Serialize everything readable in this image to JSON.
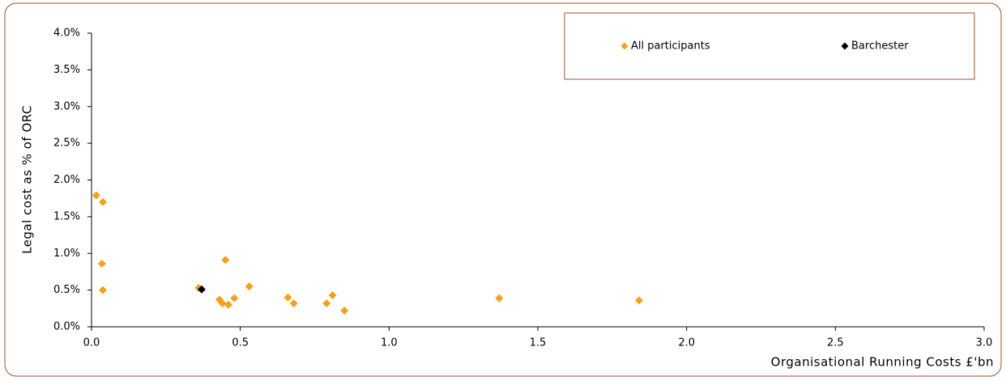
{
  "chart_data": {
    "type": "scatter",
    "x_label": "Organisational Running Costs £'bn",
    "y_label": "Legal cost as % of ORC",
    "xlim": [
      0,
      3
    ],
    "ylim": [
      0,
      4
    ],
    "xticks": [
      {
        "value": 0,
        "label": "0.0"
      },
      0.5,
      {
        "value": 1,
        "label": "1.0"
      },
      1.5,
      {
        "value": 2,
        "label": "2.0"
      },
      2.5,
      {
        "value": 3,
        "label": "3.0"
      }
    ],
    "yticks": [
      {
        "value": 0,
        "label": "0.0%"
      },
      {
        "value": 0.5,
        "label": "0.5%"
      },
      {
        "value": 1,
        "label": "1.0%"
      },
      {
        "value": 1.5,
        "label": "1.5%"
      },
      {
        "value": 2,
        "label": "2.0%"
      },
      {
        "value": 2.5,
        "label": "2.5%"
      },
      {
        "value": 3,
        "label": "3.0%"
      },
      {
        "value": 3.5,
        "label": "3.5%"
      },
      {
        "value": 4,
        "label": "4.0%"
      }
    ],
    "series": [
      {
        "name": "All participants",
        "color": "#f5a01a",
        "x": [
          0.016,
          0.038,
          0.035,
          0.038,
          0.36,
          0.43,
          0.44,
          0.45,
          0.46,
          0.48,
          0.53,
          0.66,
          0.68,
          0.79,
          0.81,
          0.85,
          1.37,
          1.84
        ],
        "values": [
          1.79,
          1.7,
          0.86,
          0.5,
          0.53,
          0.37,
          0.32,
          0.91,
          0.3,
          0.39,
          0.55,
          0.4,
          0.32,
          0.32,
          0.43,
          0.22,
          0.39,
          0.36
        ]
      },
      {
        "name": "Barchester",
        "color": "#000000",
        "x": [
          0.37
        ],
        "values": [
          0.51
        ]
      }
    ]
  }
}
